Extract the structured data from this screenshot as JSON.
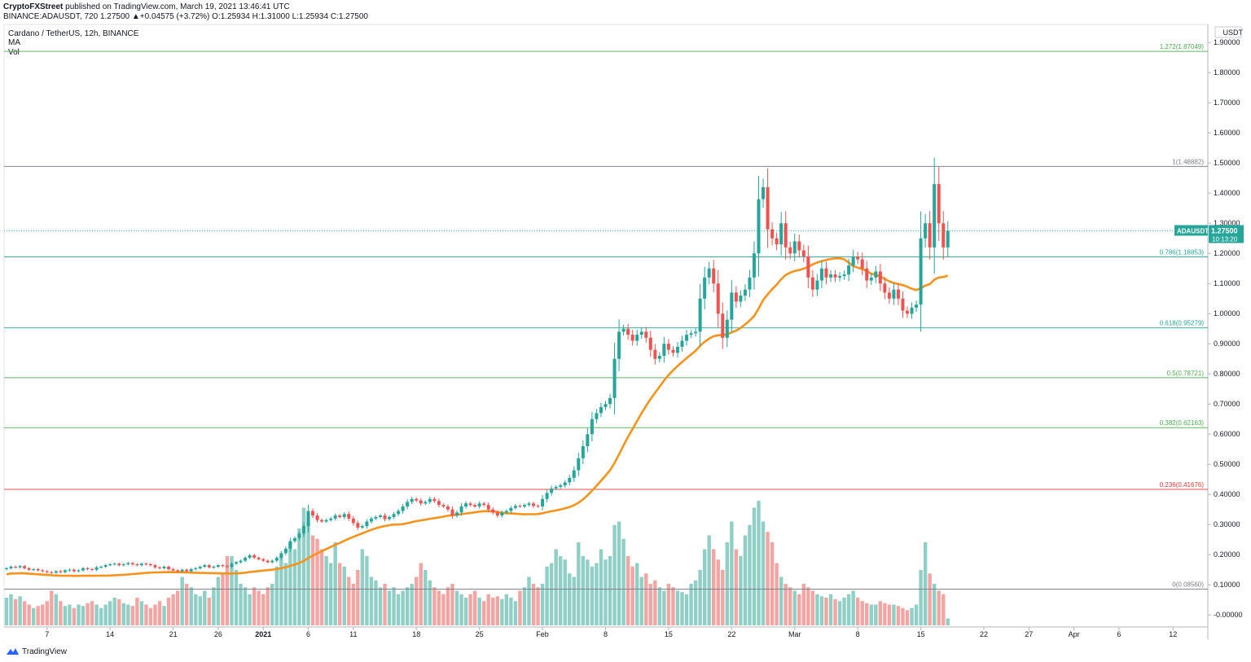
{
  "header": {
    "publisher": "CryptoFXStreet",
    "published_text": "published on TradingView.com, March 19, 2021 13:46:41 UTC",
    "symbol": "BINANCE:ADAUSDT, 720",
    "ohlc": "1.27500 ▲+0.04575 (+3.72%) O:1.25934 H:1.31000 L:1.25934 C:1.27500",
    "title": "Cardano / TetherUS, 12h, BINANCE",
    "study_ma": "MA",
    "study_vol": "Vol"
  },
  "footer": {
    "brand": "TradingView"
  },
  "colors": {
    "up": "#26a69a",
    "down": "#ef5350",
    "vol_up": "#8fcfc6",
    "vol_down": "#f2a5a3",
    "ma": "#f7931a",
    "fib_green": "#4caf50",
    "fib_red": "#e53935",
    "fib_teal": "#26a69a",
    "fib_gray": "#787b86"
  },
  "chart_data": {
    "type": "candlestick",
    "title": "Cardano / TetherUS, 12h, BINANCE",
    "price_axis_label": "USDT",
    "ylim": [
      -0.04,
      1.96
    ],
    "yticks": [
      "1.90000",
      "1.80000",
      "1.70000",
      "1.60000",
      "1.50000",
      "1.40000",
      "1.30000",
      "1.20000",
      "1.10000",
      "1.00000",
      "0.90000",
      "0.80000",
      "0.70000",
      "0.60000",
      "0.50000",
      "0.40000",
      "0.30000",
      "0.20000",
      "0.10000",
      "-0.00000"
    ],
    "x_ticks": [
      {
        "label": "7",
        "bar": 9
      },
      {
        "label": "14",
        "bar": 23
      },
      {
        "label": "21",
        "bar": 37
      },
      {
        "label": "26",
        "bar": 47
      },
      {
        "label": "2021",
        "bar": 57,
        "bold": true
      },
      {
        "label": "6",
        "bar": 67
      },
      {
        "label": "11",
        "bar": 77
      },
      {
        "label": "18",
        "bar": 91
      },
      {
        "label": "25",
        "bar": 105
      },
      {
        "label": "Feb",
        "bar": 119
      },
      {
        "label": "8",
        "bar": 133
      },
      {
        "label": "15",
        "bar": 147
      },
      {
        "label": "22",
        "bar": 161
      },
      {
        "label": "Mar",
        "bar": 175
      },
      {
        "label": "8",
        "bar": 189
      },
      {
        "label": "15",
        "bar": 203
      },
      {
        "label": "22",
        "bar": 217
      },
      {
        "label": "27",
        "bar": 227
      },
      {
        "label": "Apr",
        "bar": 237
      },
      {
        "label": "6",
        "bar": 247
      },
      {
        "label": "12",
        "bar": 259
      }
    ],
    "fib_levels": [
      {
        "label": "1.272(1.87049)",
        "value": 1.87049,
        "color": "green"
      },
      {
        "label": "1(1.48882)",
        "value": 1.48882,
        "color": "gray"
      },
      {
        "label": "0.786(1.18853)",
        "value": 1.18853,
        "color": "teal"
      },
      {
        "label": "0.618(0.95279)",
        "value": 0.95279,
        "color": "teal"
      },
      {
        "label": "0.5(0.78721)",
        "value": 0.78721,
        "color": "green"
      },
      {
        "label": "0.382(0.62163)",
        "value": 0.62163,
        "color": "green"
      },
      {
        "label": "0.236(0.41676)",
        "value": 0.41676,
        "color": "red"
      },
      {
        "label": "0(0.08560)",
        "value": 0.0856,
        "color": "gray"
      }
    ],
    "last_price": {
      "symbol": "ADAUSDT",
      "price": "1.27500",
      "countdown": "10:13:20",
      "value": 1.275
    },
    "close": [
      0.155,
      0.16,
      0.158,
      0.162,
      0.155,
      0.15,
      0.152,
      0.148,
      0.145,
      0.142,
      0.14,
      0.145,
      0.142,
      0.148,
      0.15,
      0.145,
      0.148,
      0.155,
      0.152,
      0.15,
      0.158,
      0.16,
      0.165,
      0.168,
      0.17,
      0.165,
      0.168,
      0.172,
      0.168,
      0.165,
      0.17,
      0.168,
      0.165,
      0.158,
      0.155,
      0.16,
      0.152,
      0.148,
      0.145,
      0.15,
      0.145,
      0.152,
      0.155,
      0.16,
      0.165,
      0.158,
      0.16,
      0.165,
      0.162,
      0.16,
      0.17,
      0.175,
      0.18,
      0.19,
      0.198,
      0.19,
      0.185,
      0.18,
      0.175,
      0.18,
      0.19,
      0.205,
      0.22,
      0.245,
      0.255,
      0.27,
      0.295,
      0.345,
      0.33,
      0.315,
      0.31,
      0.315,
      0.32,
      0.33,
      0.325,
      0.335,
      0.32,
      0.305,
      0.29,
      0.295,
      0.31,
      0.32,
      0.325,
      0.33,
      0.318,
      0.325,
      0.335,
      0.345,
      0.36,
      0.375,
      0.385,
      0.38,
      0.37,
      0.375,
      0.385,
      0.378,
      0.365,
      0.36,
      0.35,
      0.33,
      0.34,
      0.36,
      0.37,
      0.365,
      0.36,
      0.37,
      0.365,
      0.35,
      0.34,
      0.33,
      0.34,
      0.345,
      0.355,
      0.362,
      0.36,
      0.365,
      0.37,
      0.362,
      0.36,
      0.385,
      0.405,
      0.42,
      0.425,
      0.43,
      0.44,
      0.455,
      0.48,
      0.52,
      0.56,
      0.6,
      0.65,
      0.67,
      0.69,
      0.7,
      0.72,
      0.85,
      0.94,
      0.95,
      0.93,
      0.91,
      0.93,
      0.94,
      0.92,
      0.88,
      0.85,
      0.86,
      0.9,
      0.88,
      0.87,
      0.89,
      0.91,
      0.93,
      0.935,
      0.94,
      1.05,
      1.12,
      1.15,
      1.1,
      1.0,
      0.92,
      0.98,
      1.07,
      1.04,
      1.06,
      1.08,
      1.12,
      1.2,
      1.38,
      1.42,
      1.28,
      1.25,
      1.23,
      1.3,
      1.22,
      1.2,
      1.24,
      1.21,
      1.19,
      1.12,
      1.08,
      1.11,
      1.15,
      1.12,
      1.13,
      1.12,
      1.125,
      1.13,
      1.16,
      1.19,
      1.18,
      1.15,
      1.11,
      1.12,
      1.14,
      1.1,
      1.07,
      1.05,
      1.08,
      1.05,
      1.01,
      1.0,
      1.02,
      1.03,
      1.25,
      1.3,
      1.22,
      1.43,
      1.3,
      1.22,
      1.275
    ],
    "volume_rel": [
      0.4,
      0.45,
      0.38,
      0.42,
      0.35,
      0.3,
      0.25,
      0.28,
      0.3,
      0.35,
      0.5,
      0.45,
      0.35,
      0.28,
      0.3,
      0.25,
      0.3,
      0.28,
      0.32,
      0.35,
      0.3,
      0.25,
      0.3,
      0.35,
      0.4,
      0.38,
      0.32,
      0.3,
      0.28,
      0.4,
      0.35,
      0.3,
      0.25,
      0.3,
      0.35,
      0.28,
      0.4,
      0.45,
      0.5,
      0.7,
      0.6,
      0.55,
      0.45,
      0.42,
      0.5,
      0.4,
      0.55,
      0.7,
      0.75,
      1.0,
      1.0,
      0.8,
      0.6,
      0.55,
      0.45,
      0.55,
      0.5,
      0.45,
      0.55,
      0.6,
      0.85,
      1.0,
      0.9,
      1.2,
      1.1,
      1.4,
      1.7,
      1.5,
      1.3,
      1.25,
      1.1,
      1.0,
      0.9,
      1.2,
      0.9,
      0.85,
      0.7,
      0.6,
      0.8,
      1.1,
      1.0,
      0.7,
      0.65,
      0.55,
      0.6,
      0.5,
      0.55,
      0.45,
      0.5,
      0.55,
      0.6,
      0.7,
      0.9,
      0.8,
      0.65,
      0.55,
      0.5,
      0.45,
      0.55,
      0.6,
      0.5,
      0.45,
      0.4,
      0.45,
      0.5,
      0.4,
      0.35,
      0.45,
      0.4,
      0.42,
      0.38,
      0.45,
      0.4,
      0.35,
      0.5,
      0.55,
      0.7,
      0.6,
      0.55,
      0.6,
      0.85,
      0.9,
      1.1,
      1.0,
      0.95,
      0.75,
      0.7,
      1.2,
      1.0,
      0.95,
      0.85,
      0.9,
      1.1,
      0.95,
      1.0,
      1.45,
      1.5,
      1.25,
      1.0,
      0.85,
      0.9,
      0.7,
      0.75,
      0.6,
      0.65,
      0.55,
      0.5,
      0.6,
      0.55,
      0.5,
      0.48,
      0.45,
      0.6,
      0.65,
      0.8,
      1.1,
      1.3,
      1.1,
      0.95,
      0.8,
      1.2,
      1.5,
      1.1,
      1.0,
      1.3,
      1.45,
      1.7,
      1.8,
      1.5,
      1.35,
      1.2,
      0.9,
      0.7,
      0.6,
      0.55,
      0.5,
      0.45,
      0.6,
      0.55,
      0.5,
      0.45,
      0.42,
      0.4,
      0.45,
      0.38,
      0.35,
      0.4,
      0.45,
      0.5,
      0.4,
      0.35,
      0.32,
      0.3,
      0.3,
      0.35,
      0.32,
      0.3,
      0.3,
      0.28,
      0.25,
      0.22,
      0.25,
      0.3,
      0.8,
      1.2,
      0.75,
      0.6,
      0.5,
      0.45,
      0.1
    ]
  }
}
